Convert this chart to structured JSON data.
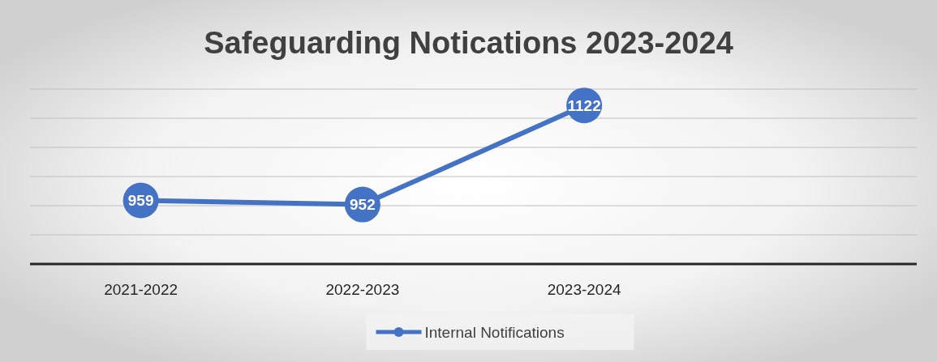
{
  "chart_data": {
    "type": "line",
    "title": "Safeguarding Notications 2023-2024",
    "categories": [
      "2021-2022",
      "2022-2023",
      "2023-2024",
      null
    ],
    "series": [
      {
        "name": "Internal Notifications",
        "color": "#4472c4",
        "values": [
          959,
          952,
          1122,
          null
        ]
      }
    ],
    "ylim": [
      850,
      1150
    ],
    "yticks": [
      {
        "value": 850,
        "label": null
      },
      {
        "value": 900,
        "label": null
      },
      {
        "value": 950,
        "label": null
      },
      {
        "value": 1000,
        "label": null
      },
      {
        "value": 1050,
        "label": null
      },
      {
        "value": 1100,
        "label": null
      },
      {
        "value": 1150,
        "label": null
      }
    ],
    "grid": "y",
    "legend": "bottom",
    "marker": "circle",
    "line_style": "solid",
    "data_labels": true
  }
}
